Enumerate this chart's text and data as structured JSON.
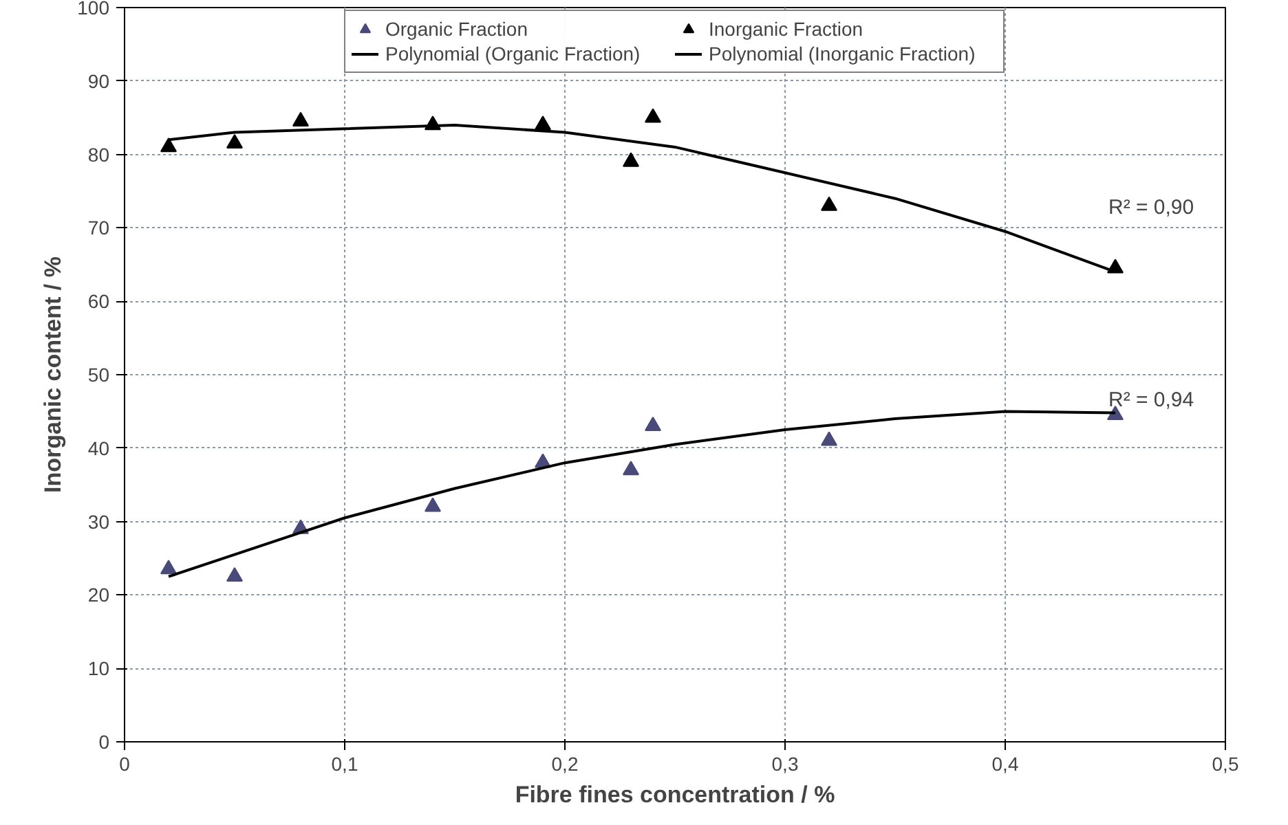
{
  "chart_data": {
    "type": "scatter",
    "xlabel": "Fibre fines concentration / %",
    "ylabel": "Inorganic content / %",
    "xlim": [
      0,
      0.5
    ],
    "ylim": [
      0,
      100
    ],
    "xticks": [
      0,
      {
        "value": 0.1,
        "label": "0,1"
      },
      {
        "value": 0.2,
        "label": "0,2"
      },
      {
        "value": 0.3,
        "label": "0,3"
      },
      {
        "value": 0.4,
        "label": "0,4"
      },
      {
        "value": 0.5,
        "label": "0,5"
      }
    ],
    "yticks": [
      0,
      10,
      20,
      30,
      40,
      50,
      60,
      70,
      80,
      90,
      100
    ],
    "grid": true,
    "legend": "top",
    "series": [
      {
        "name": "Organic Fraction",
        "marker": "triangle",
        "color": "#4a4a7a",
        "x": [
          0.02,
          0.05,
          0.08,
          0.14,
          0.19,
          0.23,
          0.24,
          0.32,
          0.45
        ],
        "values": [
          23.5,
          22.5,
          29,
          32,
          38,
          37,
          43,
          41,
          44.5
        ]
      },
      {
        "name": "Inorganic Fraction",
        "marker": "triangle",
        "color": "#000000",
        "x": [
          0.02,
          0.05,
          0.08,
          0.14,
          0.19,
          0.23,
          0.24,
          0.32,
          0.45
        ],
        "values": [
          81,
          81.5,
          84.5,
          84,
          84,
          79,
          85,
          73,
          64.5
        ]
      },
      {
        "name": "Polynomial (Organic Fraction)",
        "type": "line",
        "color": "#000000",
        "x": [
          0.02,
          0.05,
          0.1,
          0.15,
          0.2,
          0.25,
          0.3,
          0.35,
          0.4,
          0.45
        ],
        "values": [
          22.5,
          25.5,
          30.5,
          34.5,
          38,
          40.5,
          42.5,
          44,
          45,
          44.8
        ]
      },
      {
        "name": "Polynomial (Inorganic Fraction)",
        "type": "line",
        "color": "#000000",
        "x": [
          0.02,
          0.05,
          0.1,
          0.15,
          0.2,
          0.25,
          0.3,
          0.35,
          0.4,
          0.45
        ],
        "values": [
          82,
          83,
          83.5,
          84,
          83,
          81,
          77.5,
          74,
          69.5,
          64
        ]
      }
    ],
    "annotations": [
      "R² = 0,90",
      "R² = 0,94"
    ]
  }
}
